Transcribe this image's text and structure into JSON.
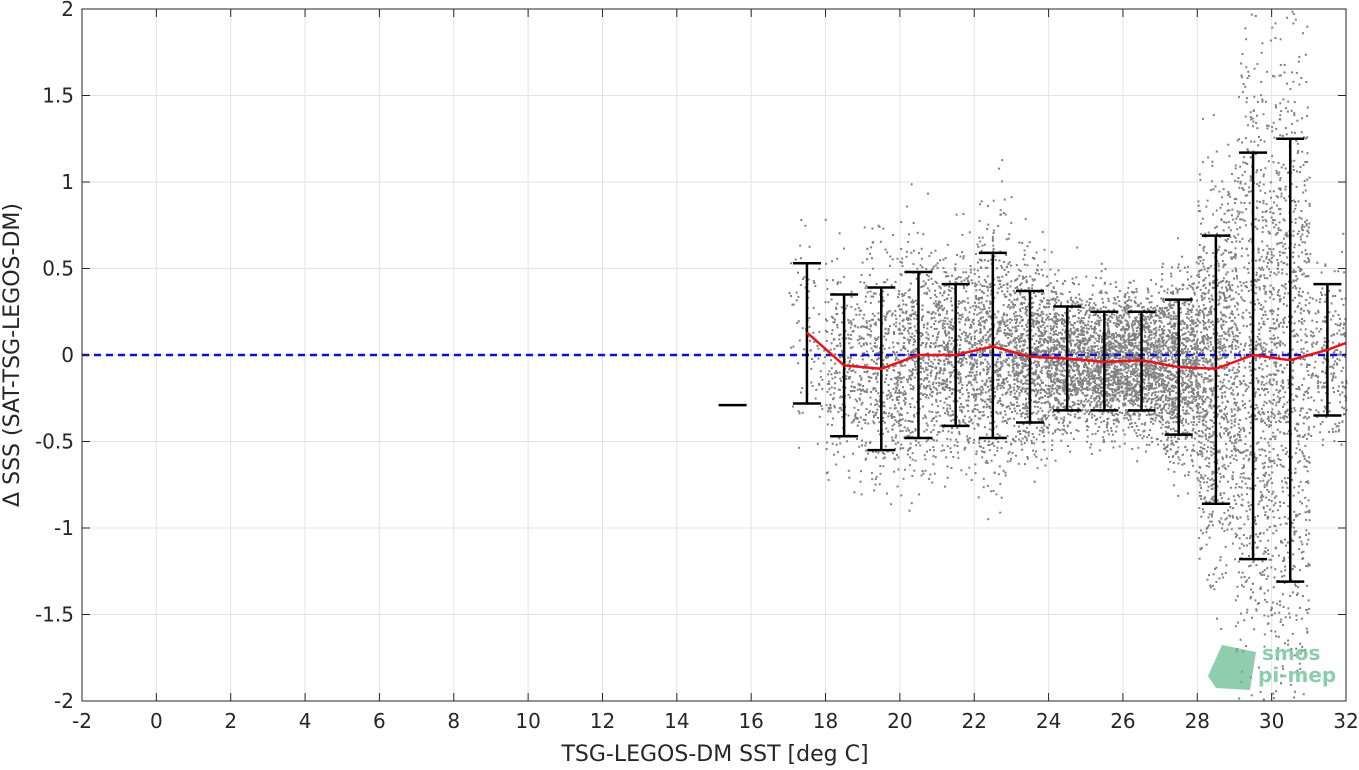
{
  "chart_data": {
    "type": "scatter",
    "xlabel": "TSG-LEGOS-DM SST [deg C]",
    "ylabel": "Δ SSS (SAT-TSG-LEGOS-DM)",
    "xlim": [
      -2,
      32
    ],
    "ylim": [
      -2,
      2
    ],
    "x_ticks": [
      -2,
      0,
      2,
      4,
      6,
      8,
      10,
      12,
      14,
      16,
      18,
      20,
      22,
      24,
      26,
      28,
      30,
      32
    ],
    "x_tick_labels": [
      "-2",
      "0",
      "2",
      "4",
      "6",
      "8",
      "10",
      "12",
      "14",
      "16",
      "18",
      "20",
      "22",
      "24",
      "26",
      "28",
      "30",
      "32"
    ],
    "y_ticks": [
      -2,
      -1.5,
      -1,
      -0.5,
      0,
      0.5,
      1,
      1.5,
      2
    ],
    "y_tick_labels": [
      "-2",
      "-1.5",
      "-1",
      "-0.5",
      "0",
      "0.5",
      "1",
      "1.5",
      "2"
    ],
    "grid": true,
    "colors": {
      "scatter": "#808080",
      "median_line": "#e8141c",
      "zero_line": "#1010d0",
      "error_bars": "#000000",
      "grid": "#e3e3e3",
      "axes": "#262626",
      "logo": "#5fb88a"
    },
    "reference_line": {
      "y": 0,
      "style": "dashed"
    },
    "scatter_density": {
      "description_bins_deg_c": [
        17,
        32
      ],
      "n_points_per_bin_relative": [
        0.1,
        0.3,
        0.45,
        0.55,
        0.6,
        0.7,
        0.8,
        0.85,
        0.95,
        1.0,
        1.0,
        1.0,
        0.95,
        0.9,
        0.25
      ]
    },
    "bins": [
      {
        "x": 15.5,
        "mean": -0.29,
        "low": -0.29,
        "high": -0.29
      },
      {
        "x": 17.5,
        "mean": 0.13,
        "low": -0.28,
        "high": 0.53
      },
      {
        "x": 18.5,
        "mean": -0.06,
        "low": -0.47,
        "high": 0.35
      },
      {
        "x": 19.5,
        "mean": -0.08,
        "low": -0.55,
        "high": 0.39
      },
      {
        "x": 20.5,
        "mean": 0.0,
        "low": -0.48,
        "high": 0.48
      },
      {
        "x": 21.5,
        "mean": 0.0,
        "low": -0.41,
        "high": 0.41
      },
      {
        "x": 22.5,
        "mean": 0.05,
        "low": -0.48,
        "high": 0.59
      },
      {
        "x": 23.5,
        "mean": -0.01,
        "low": -0.39,
        "high": 0.37
      },
      {
        "x": 24.5,
        "mean": -0.02,
        "low": -0.32,
        "high": 0.28
      },
      {
        "x": 25.5,
        "mean": -0.04,
        "low": -0.32,
        "high": 0.25
      },
      {
        "x": 26.5,
        "mean": -0.03,
        "low": -0.32,
        "high": 0.25
      },
      {
        "x": 27.5,
        "mean": -0.07,
        "low": -0.46,
        "high": 0.32
      },
      {
        "x": 28.5,
        "mean": -0.08,
        "low": -0.86,
        "high": 0.69
      },
      {
        "x": 29.5,
        "mean": 0.0,
        "low": -1.18,
        "high": 1.17
      },
      {
        "x": 30.5,
        "mean": -0.03,
        "low": -1.31,
        "high": 1.25
      },
      {
        "x": 31.5,
        "mean": 0.03,
        "low": -0.35,
        "high": 0.41
      },
      {
        "x": 32.0,
        "mean": 0.07,
        "low": 0.07,
        "high": 0.07
      }
    ]
  },
  "logo": {
    "line1": "smos",
    "line2": "pi-mep"
  }
}
